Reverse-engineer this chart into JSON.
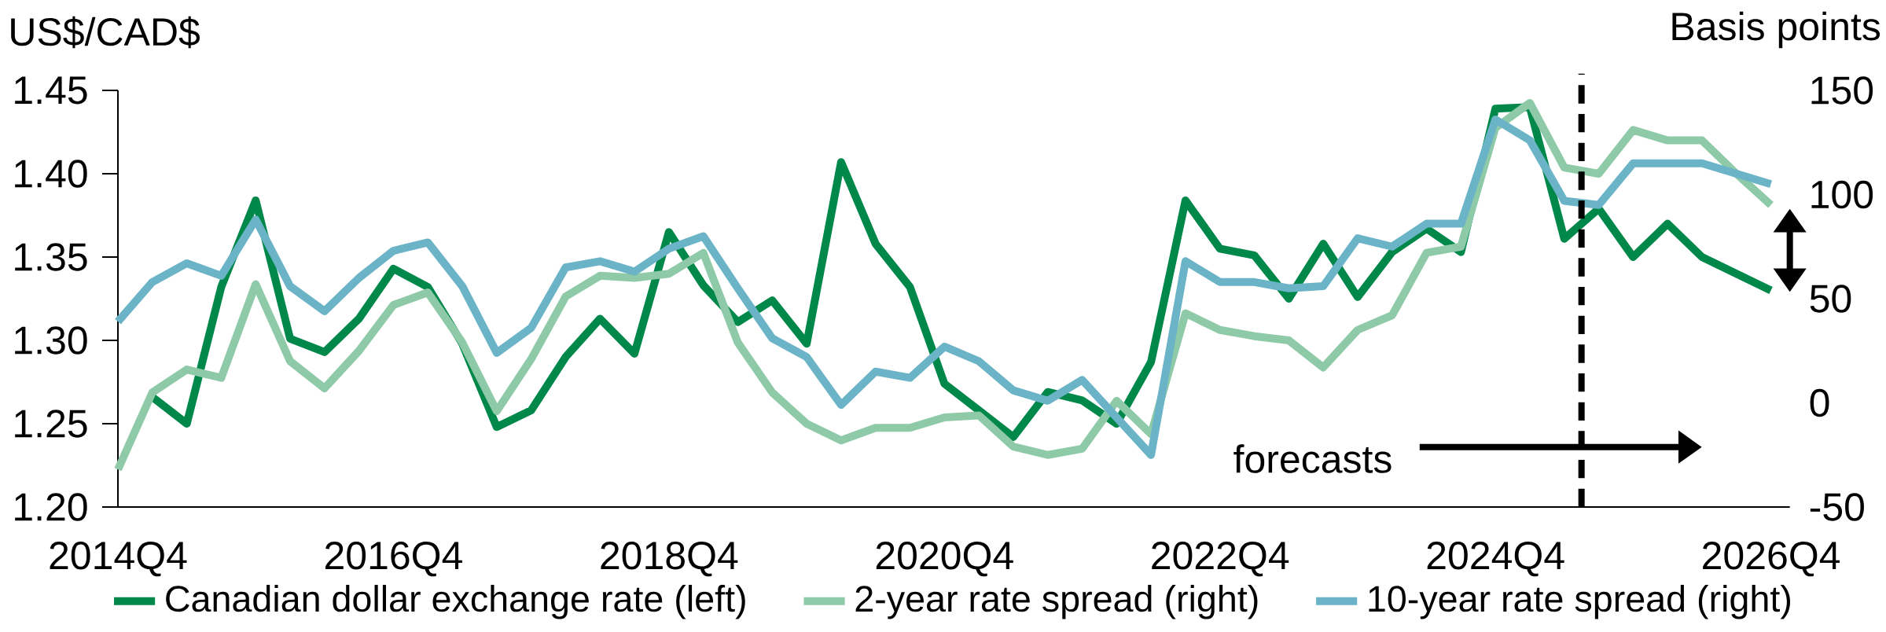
{
  "chart_data": {
    "type": "line",
    "categories": [
      "2014Q4",
      null,
      null,
      null,
      null,
      null,
      null,
      null,
      "2016Q4",
      null,
      null,
      null,
      null,
      null,
      null,
      null,
      "2018Q4",
      null,
      null,
      null,
      null,
      null,
      null,
      null,
      "2020Q4",
      null,
      null,
      null,
      null,
      null,
      null,
      null,
      "2022Q4",
      null,
      null,
      null,
      null,
      null,
      null,
      null,
      "2024Q4",
      null,
      null,
      null,
      null,
      null,
      null,
      null,
      "2026Q4"
    ],
    "ylabel": "US$/CAD$",
    "y2label": "Basis points",
    "ylim": [
      1.2,
      1.45
    ],
    "yticks": [
      {
        "value": 1.2,
        "label": "1.20"
      },
      {
        "value": 1.25,
        "label": "1.25"
      },
      {
        "value": 1.3,
        "label": "1.30"
      },
      {
        "value": 1.35,
        "label": "1.35"
      },
      {
        "value": 1.4,
        "label": "1.40"
      },
      {
        "value": 1.45,
        "label": "1.45"
      }
    ],
    "y2lim": [
      -50,
      150
    ],
    "y2ticks": [
      -50,
      0,
      50,
      100,
      150
    ],
    "series": [
      {
        "name": "Canadian dollar exchange rate (left)",
        "color": "#00874a",
        "values": [
          null,
          1.266,
          1.25,
          1.332,
          1.384,
          1.301,
          1.293,
          1.313,
          1.343,
          1.332,
          1.298,
          1.248,
          1.258,
          1.29,
          1.313,
          1.292,
          1.365,
          1.333,
          1.311,
          1.324,
          1.298,
          1.407,
          1.358,
          1.332,
          1.274,
          1.258,
          1.242,
          1.269,
          1.264,
          1.25,
          1.287,
          1.384,
          1.355,
          1.351,
          1.325,
          1.358,
          1.326,
          1.353,
          1.367,
          1.353,
          1.439,
          1.44,
          1.361,
          1.379,
          1.35,
          1.37,
          1.35,
          1.34,
          1.33
        ]
      },
      {
        "name": "2-year rate spread (right)",
        "color": "#8fcaa8",
        "axis": "y2",
        "values": [
          -32,
          5,
          16,
          12,
          57,
          20,
          7,
          25,
          47,
          53,
          29,
          -4,
          21,
          51,
          61,
          60,
          62,
          72,
          29,
          5,
          -10,
          -18,
          -12,
          -12,
          -7,
          -6,
          -21,
          -25,
          -22,
          1,
          -15,
          43,
          35,
          32,
          30,
          17,
          35,
          42,
          72,
          75,
          132,
          144,
          113,
          110,
          131,
          126,
          126,
          110,
          95
        ]
      },
      {
        "name": "10-year rate spread (right)",
        "color": "#6bb3c7",
        "axis": "y2",
        "values": [
          39,
          58,
          67,
          61,
          88,
          56,
          44,
          60,
          73,
          77,
          56,
          24,
          36,
          65,
          68,
          63,
          74,
          80,
          55,
          31,
          22,
          -1,
          15,
          12,
          27,
          20,
          6,
          1,
          11,
          -7,
          -25,
          68,
          58,
          58,
          55,
          56,
          79,
          75,
          86,
          86,
          136,
          126,
          97,
          95,
          115,
          115,
          115,
          110,
          105
        ]
      }
    ],
    "annotations": [
      "forecasts"
    ],
    "legend": "bottom"
  }
}
